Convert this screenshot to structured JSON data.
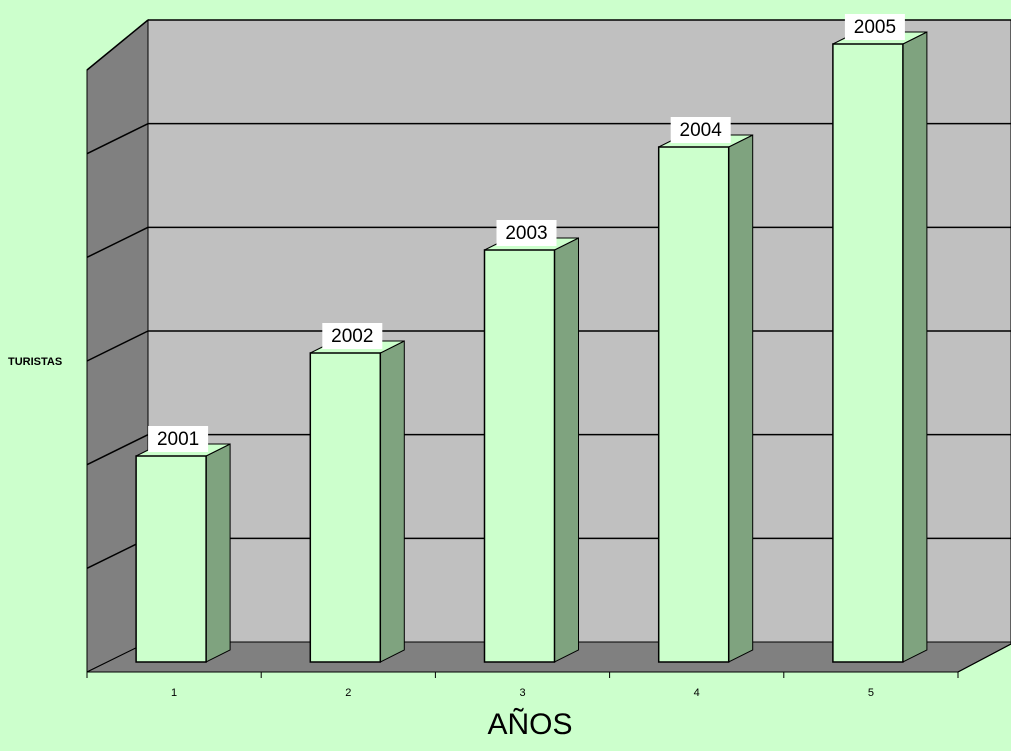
{
  "chart_data": {
    "type": "bar",
    "categories": [
      "1",
      "2",
      "3",
      "4",
      "5"
    ],
    "values": [
      1,
      1.5,
      2,
      2.5,
      3
    ],
    "data_labels": [
      "2001",
      "2002",
      "2003",
      "2004",
      "2005"
    ],
    "title": "",
    "xlabel": "AÑOS",
    "ylabel": "TURISTAS",
    "ylim": [
      0,
      3
    ],
    "gridlines": 6,
    "grid": true,
    "style": "3d-column",
    "colors": {
      "background": "#ccffcc",
      "wall": "#c0c0c0",
      "side_wall": "#808080",
      "floor": "#808080",
      "bar_front": "#ccffcc",
      "bar_side": "#7fa37f",
      "bar_top": "#ccffcc",
      "label_box": "#ffffff"
    }
  }
}
